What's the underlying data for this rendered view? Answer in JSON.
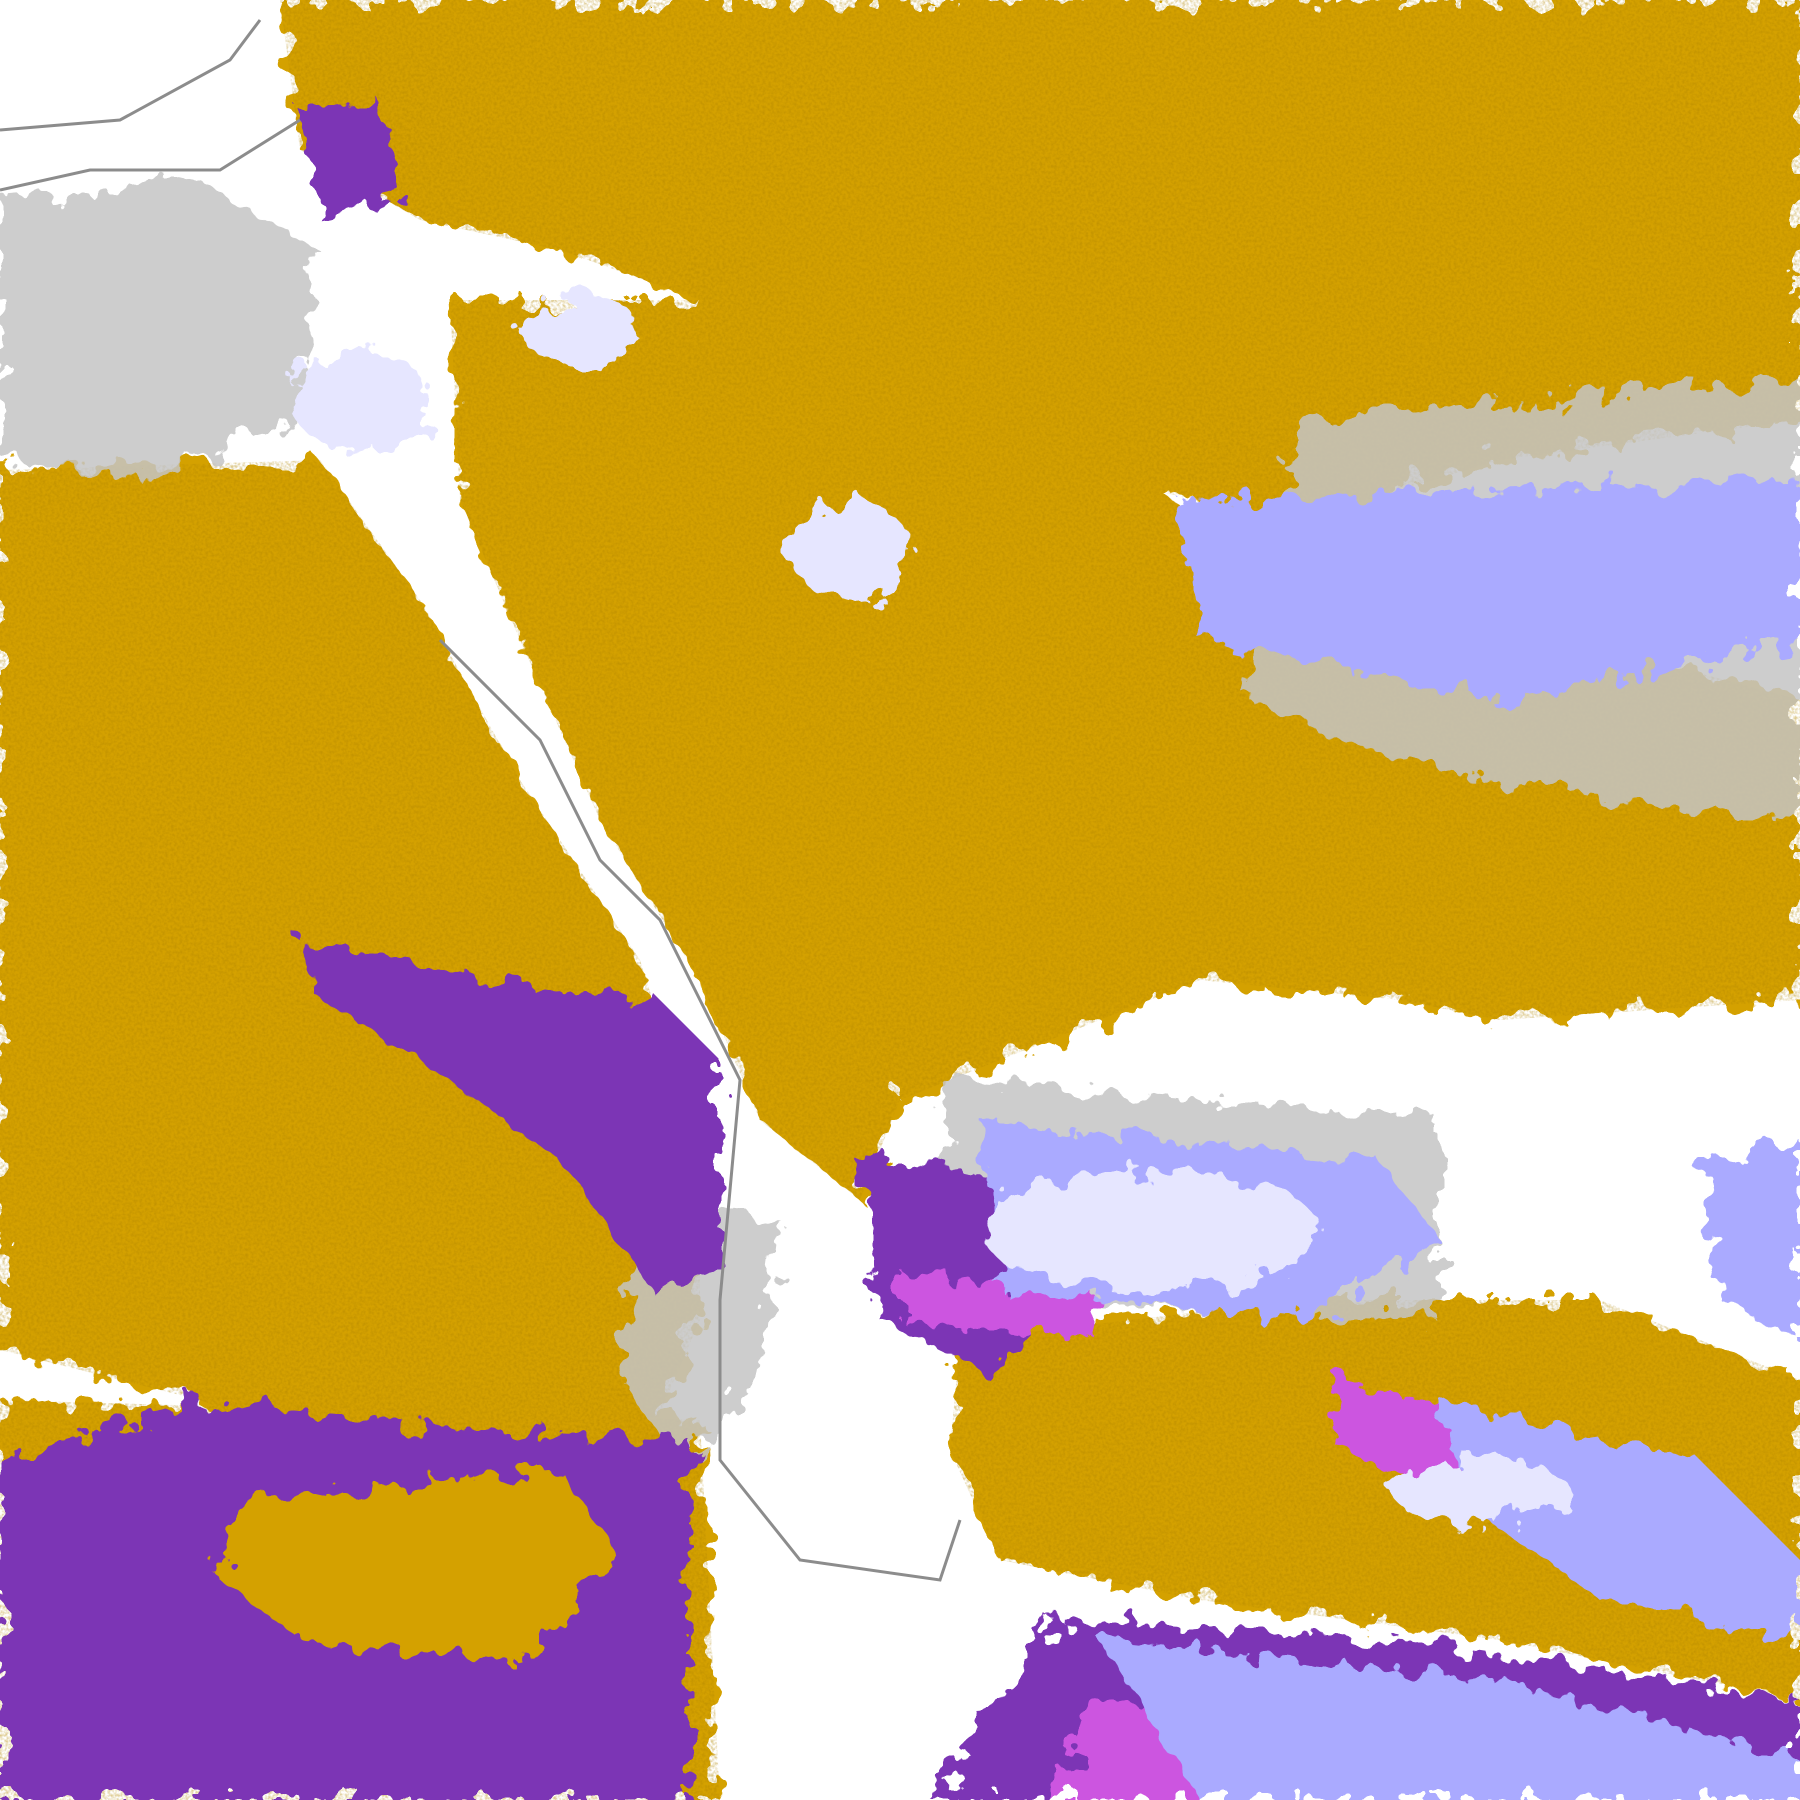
{
  "map": {
    "palette": {
      "background": "#ffffff",
      "coast_gray": "#8c8c8c",
      "light_gray": "#c4c4c4",
      "gold": "#d4a100",
      "dark_gold": "#b38700",
      "purple": "#7b35b5",
      "magenta": "#cc55e0",
      "lavender": "#aaaaff",
      "pale_lavender": "#e6e6ff"
    }
  }
}
